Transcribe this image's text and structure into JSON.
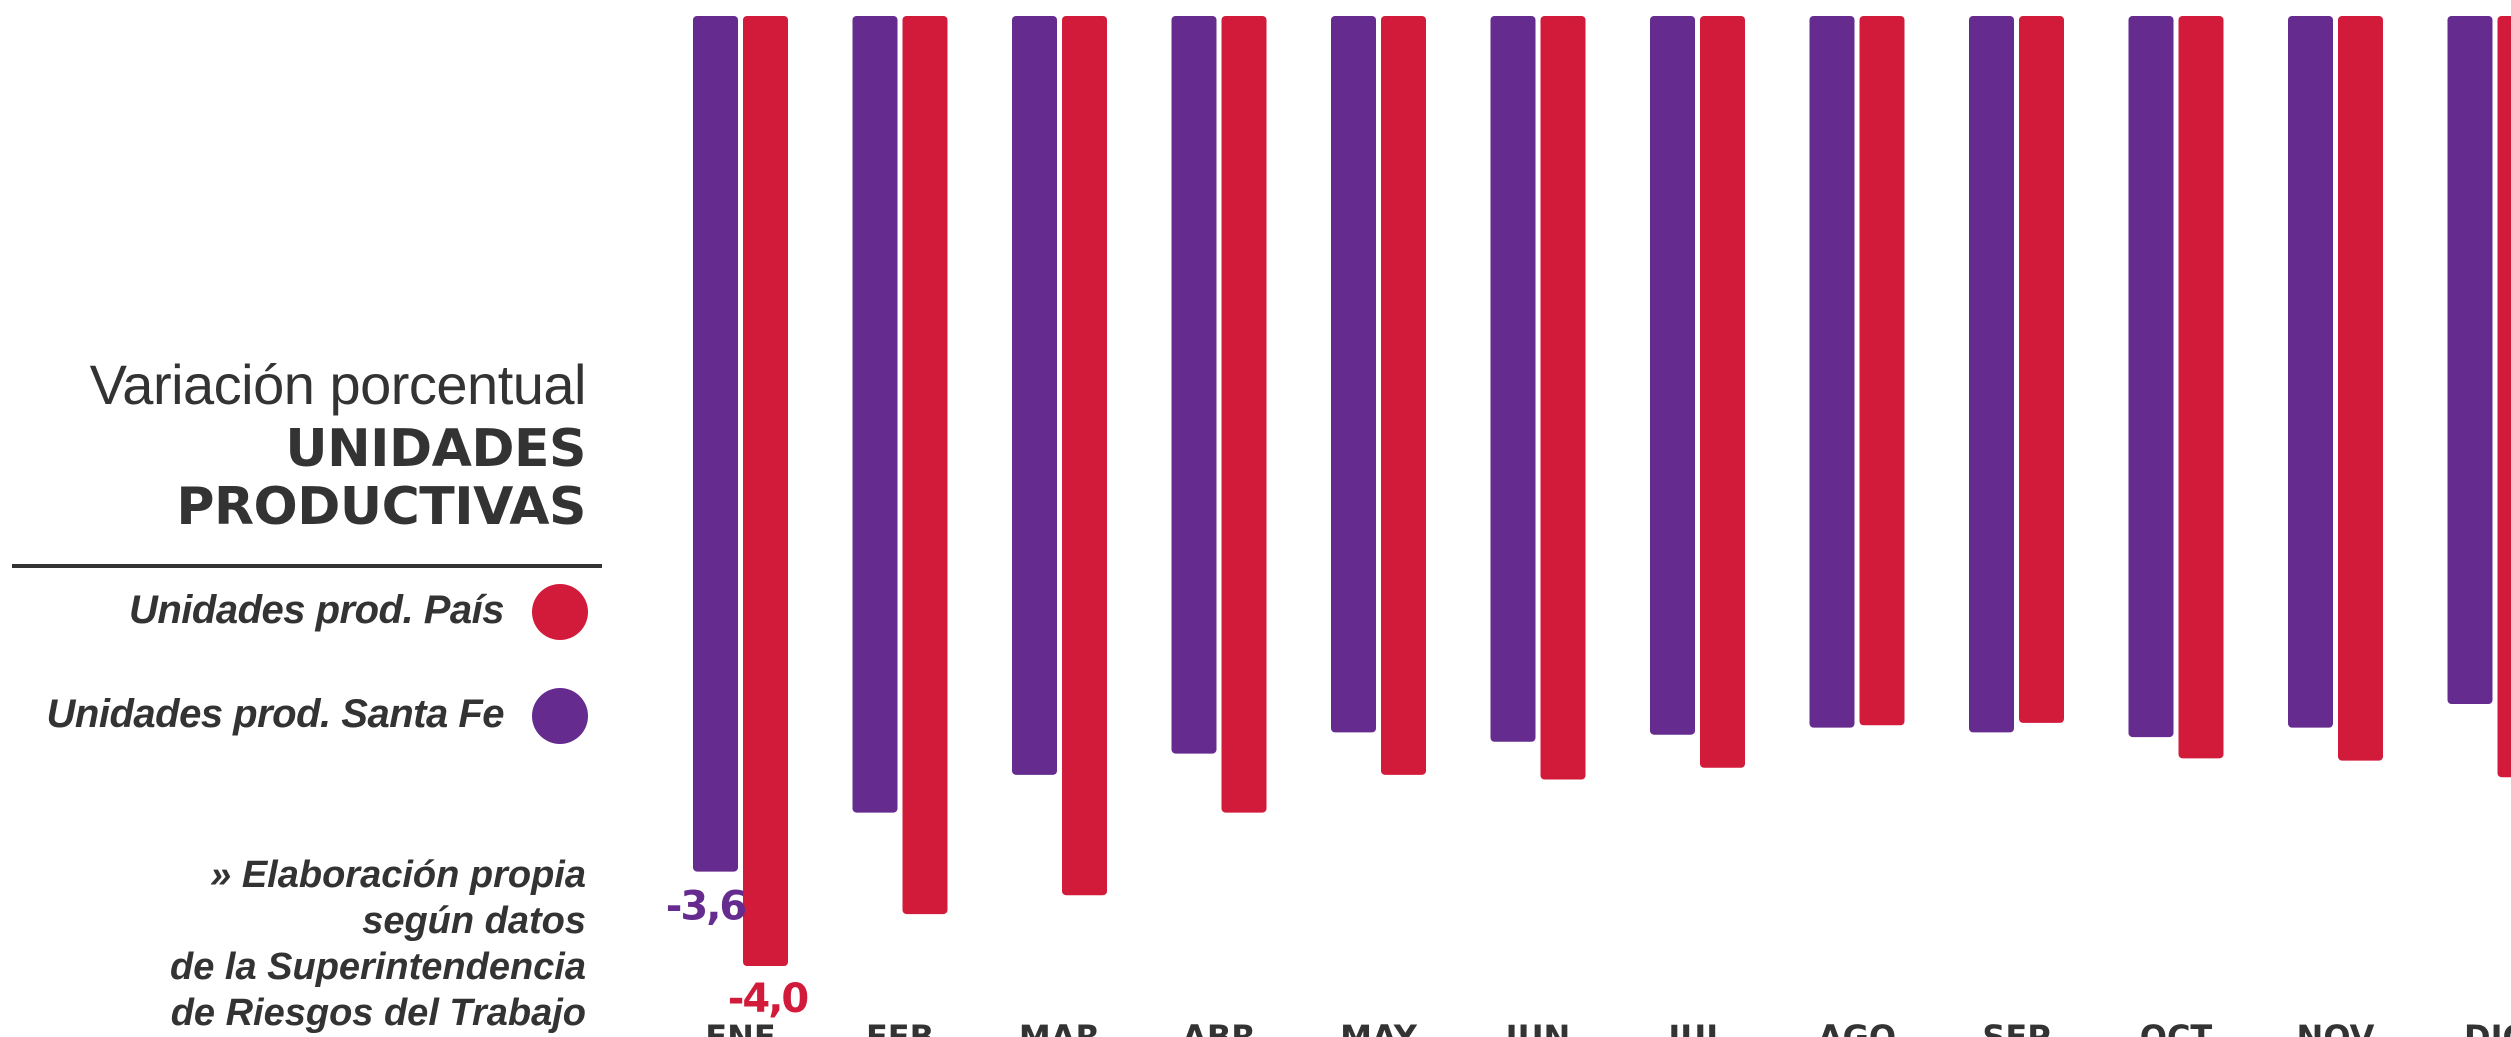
{
  "panel": {
    "title_light": "Variación porcentual",
    "title_bold_1": "UNIDADES",
    "title_bold_2": "PRODUCTIVAS",
    "legend": [
      {
        "label": "Unidades prod. País",
        "color": "#D21B3A"
      },
      {
        "label": "Unidades prod. Santa Fe",
        "color": "#652B8F"
      }
    ],
    "source_lines": [
      "» Elaboración propia",
      "según datos",
      "de la Superintendencia",
      "de Riesgos del Trabajo"
    ]
  },
  "chart_data": {
    "type": "bar",
    "categories": [
      "ENE",
      "FEB",
      "MAR",
      "ABR",
      "MAY",
      "JUN",
      "JUL",
      "AGO",
      "SEP",
      "OCT",
      "NOV",
      "DIC"
    ],
    "series": [
      {
        "name": "Unidades prod. Santa Fe",
        "color": "#652B8F",
        "values": [
          -3.6,
          -3.35,
          -3.19,
          -3.1,
          -3.01,
          -3.05,
          -3.02,
          -2.99,
          -3.01,
          -3.03,
          -2.99,
          -2.89
        ]
      },
      {
        "name": "Unidades prod. País",
        "color": "#D21B3A",
        "values": [
          -4.0,
          -3.78,
          -3.7,
          -3.35,
          -3.19,
          -3.21,
          -3.16,
          -2.98,
          -2.97,
          -3.12,
          -3.13,
          -3.2
        ]
      }
    ],
    "data_labels": [
      {
        "series": "Unidades prod. Santa Fe",
        "category": "ENE",
        "text": "-3,6"
      },
      {
        "series": "Unidades prod. País",
        "category": "ENE",
        "text": "-4,0"
      }
    ],
    "ylim": [
      -4.0,
      0
    ],
    "grid": false,
    "legend": "left"
  }
}
